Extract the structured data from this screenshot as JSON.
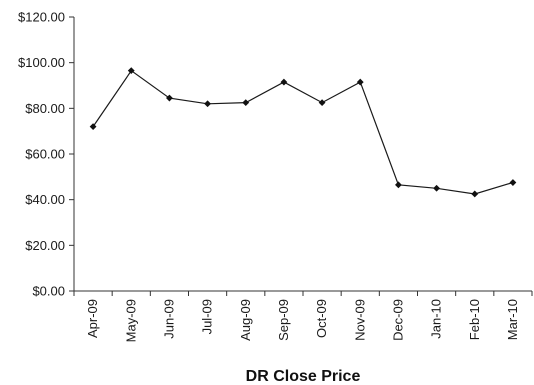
{
  "chart_data": {
    "type": "line",
    "title": "",
    "xlabel": "DR Close Price",
    "ylabel": "",
    "categories": [
      "Apr-09",
      "May-09",
      "Jun-09",
      "Jul-09",
      "Aug-09",
      "Sep-09",
      "Oct-09",
      "Nov-09",
      "Dec-09",
      "Jan-10",
      "Feb-10",
      "Mar-10"
    ],
    "series": [
      {
        "values": [
          72.0,
          96.5,
          84.5,
          82.0,
          82.5,
          91.5,
          82.5,
          91.5,
          46.5,
          45.0,
          42.5,
          47.5
        ]
      }
    ],
    "ylim": [
      0,
      120
    ],
    "yticks": [
      0,
      20,
      40,
      60,
      80,
      100,
      120
    ],
    "ytick_labels": [
      "$0.00",
      "$20.00",
      "$40.00",
      "$60.00",
      "$80.00",
      "$100.00",
      "$120.00"
    ],
    "grid": false,
    "legend": "none",
    "colors": {
      "line": "#1a1a1a",
      "marker": "#111111",
      "axis": "#333333"
    }
  }
}
